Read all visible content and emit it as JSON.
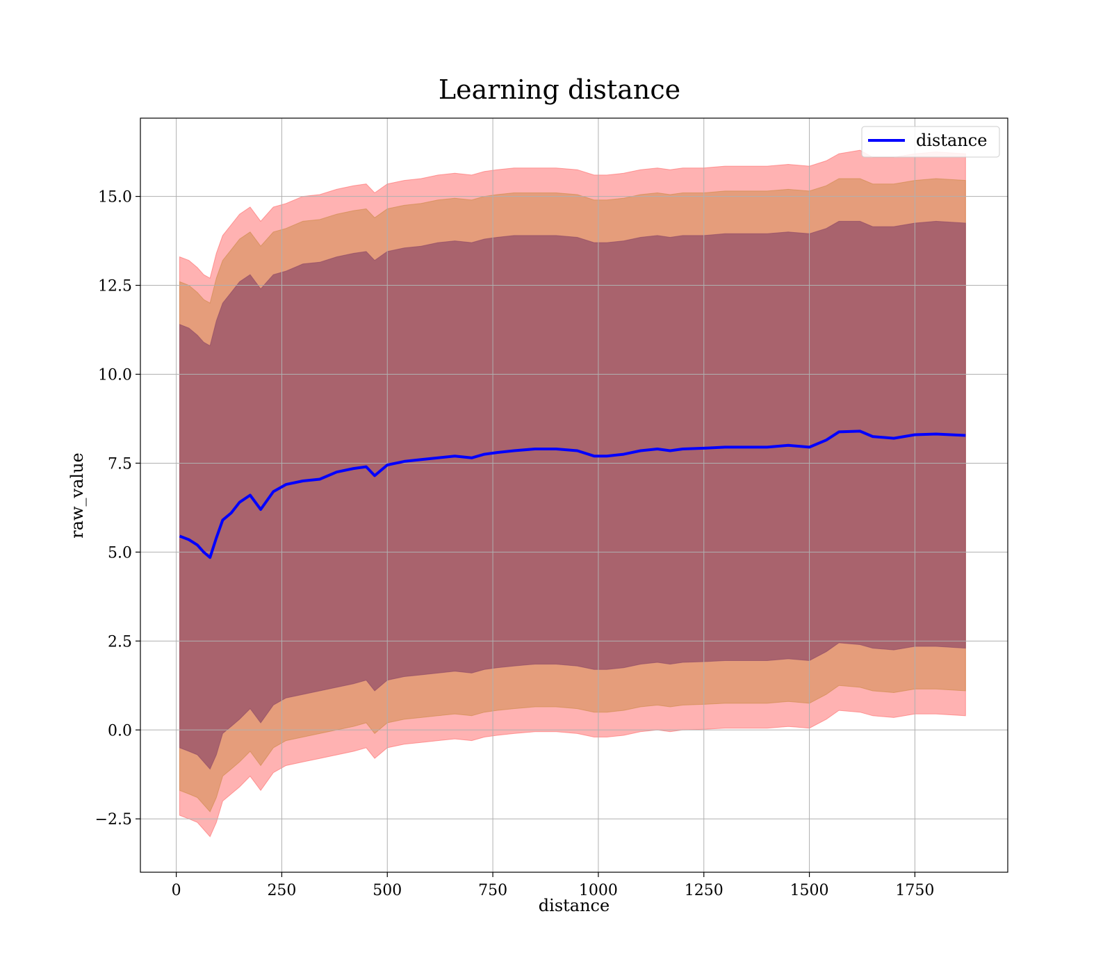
{
  "chart_data": {
    "type": "area",
    "title": "Learning distance",
    "xlabel": "distance",
    "ylabel": "raw_value",
    "xlim": [
      -85,
      1970
    ],
    "ylim": [
      -4,
      17.2
    ],
    "xticks": [
      0,
      250,
      500,
      750,
      1000,
      1250,
      1500,
      1750
    ],
    "yticks": [
      -2.5,
      0.0,
      2.5,
      5.0,
      7.5,
      10.0,
      12.5,
      15.0
    ],
    "xtick_labels": [
      "0",
      "250",
      "500",
      "750",
      "1000",
      "1250",
      "1500",
      "1750"
    ],
    "ytick_labels": [
      "−2.5",
      "0.0",
      "2.5",
      "5.0",
      "7.5",
      "10.0",
      "12.5",
      "15.0"
    ],
    "grid": true,
    "legend": {
      "position": "top-right",
      "entries": [
        {
          "name": "distance",
          "color": "#0000ff"
        }
      ]
    },
    "x": [
      8,
      30,
      50,
      65,
      80,
      95,
      110,
      130,
      150,
      175,
      200,
      230,
      260,
      300,
      340,
      380,
      420,
      450,
      470,
      500,
      540,
      580,
      620,
      660,
      700,
      730,
      760,
      800,
      850,
      900,
      950,
      990,
      1020,
      1060,
      1100,
      1140,
      1170,
      1200,
      1250,
      1300,
      1350,
      1400,
      1450,
      1500,
      1540,
      1570,
      1620,
      1650,
      1700,
      1750,
      1800,
      1870
    ],
    "series": [
      {
        "name": "distance",
        "values": [
          5.45,
          5.35,
          5.2,
          5.0,
          4.85,
          5.4,
          5.9,
          6.1,
          6.4,
          6.6,
          6.2,
          6.7,
          6.9,
          7.0,
          7.05,
          7.25,
          7.35,
          7.4,
          7.15,
          7.45,
          7.55,
          7.6,
          7.65,
          7.7,
          7.65,
          7.75,
          7.8,
          7.85,
          7.9,
          7.9,
          7.85,
          7.7,
          7.7,
          7.75,
          7.85,
          7.9,
          7.85,
          7.9,
          7.92,
          7.95,
          7.95,
          7.95,
          8.0,
          7.95,
          8.15,
          8.38,
          8.4,
          8.25,
          8.2,
          8.3,
          8.32,
          8.28
        ],
        "color": "#0000ff"
      }
    ],
    "bands": [
      {
        "upper": [
          13.3,
          13.2,
          13.0,
          12.8,
          12.7,
          13.4,
          13.9,
          14.2,
          14.5,
          14.7,
          14.3,
          14.7,
          14.8,
          15.0,
          15.05,
          15.2,
          15.3,
          15.35,
          15.1,
          15.35,
          15.45,
          15.5,
          15.6,
          15.65,
          15.6,
          15.7,
          15.75,
          15.8,
          15.8,
          15.8,
          15.75,
          15.6,
          15.6,
          15.65,
          15.75,
          15.8,
          15.75,
          15.8,
          15.8,
          15.85,
          15.85,
          15.85,
          15.9,
          15.85,
          16.0,
          16.2,
          16.3,
          16.1,
          16.1,
          16.2,
          16.25,
          16.2
        ],
        "lower": [
          -2.4,
          -2.5,
          -2.6,
          -2.8,
          -3.0,
          -2.6,
          -2.0,
          -1.8,
          -1.6,
          -1.3,
          -1.7,
          -1.2,
          -1.0,
          -0.9,
          -0.8,
          -0.7,
          -0.6,
          -0.5,
          -0.8,
          -0.5,
          -0.4,
          -0.35,
          -0.3,
          -0.25,
          -0.3,
          -0.2,
          -0.15,
          -0.1,
          -0.05,
          -0.05,
          -0.1,
          -0.2,
          -0.2,
          -0.15,
          -0.05,
          0.0,
          -0.05,
          0.0,
          0.02,
          0.05,
          0.05,
          0.05,
          0.1,
          0.05,
          0.3,
          0.55,
          0.5,
          0.4,
          0.35,
          0.45,
          0.45,
          0.4
        ],
        "color": "#ff6666",
        "opacity": 0.5
      },
      {
        "upper": [
          12.6,
          12.5,
          12.3,
          12.1,
          12.0,
          12.7,
          13.2,
          13.5,
          13.8,
          14.0,
          13.6,
          14.0,
          14.1,
          14.3,
          14.35,
          14.5,
          14.6,
          14.65,
          14.4,
          14.65,
          14.75,
          14.8,
          14.9,
          14.95,
          14.9,
          15.0,
          15.05,
          15.1,
          15.1,
          15.1,
          15.05,
          14.9,
          14.9,
          14.95,
          15.05,
          15.1,
          15.05,
          15.1,
          15.1,
          15.15,
          15.15,
          15.15,
          15.2,
          15.15,
          15.3,
          15.5,
          15.5,
          15.35,
          15.35,
          15.45,
          15.5,
          15.45
        ],
        "lower": [
          -1.7,
          -1.8,
          -1.9,
          -2.1,
          -2.3,
          -1.9,
          -1.3,
          -1.1,
          -0.9,
          -0.6,
          -1.0,
          -0.5,
          -0.3,
          -0.2,
          -0.1,
          0.0,
          0.1,
          0.2,
          -0.1,
          0.2,
          0.3,
          0.35,
          0.4,
          0.45,
          0.4,
          0.5,
          0.55,
          0.6,
          0.65,
          0.65,
          0.6,
          0.5,
          0.5,
          0.55,
          0.65,
          0.7,
          0.65,
          0.7,
          0.72,
          0.75,
          0.75,
          0.75,
          0.8,
          0.75,
          1.0,
          1.25,
          1.2,
          1.1,
          1.05,
          1.15,
          1.15,
          1.1
        ],
        "color": "#cc8844",
        "opacity": 0.5
      },
      {
        "upper": [
          11.4,
          11.3,
          11.1,
          10.9,
          10.8,
          11.5,
          12.0,
          12.3,
          12.6,
          12.8,
          12.4,
          12.8,
          12.9,
          13.1,
          13.15,
          13.3,
          13.4,
          13.45,
          13.2,
          13.45,
          13.55,
          13.6,
          13.7,
          13.75,
          13.7,
          13.8,
          13.85,
          13.9,
          13.9,
          13.9,
          13.85,
          13.7,
          13.7,
          13.75,
          13.85,
          13.9,
          13.85,
          13.9,
          13.9,
          13.95,
          13.95,
          13.95,
          14.0,
          13.95,
          14.1,
          14.3,
          14.3,
          14.15,
          14.15,
          14.25,
          14.3,
          14.25
        ],
        "lower": [
          -0.5,
          -0.6,
          -0.7,
          -0.9,
          -1.1,
          -0.7,
          -0.1,
          0.1,
          0.3,
          0.6,
          0.2,
          0.7,
          0.9,
          1.0,
          1.1,
          1.2,
          1.3,
          1.4,
          1.1,
          1.4,
          1.5,
          1.55,
          1.6,
          1.65,
          1.6,
          1.7,
          1.75,
          1.8,
          1.85,
          1.85,
          1.8,
          1.7,
          1.7,
          1.75,
          1.85,
          1.9,
          1.85,
          1.9,
          1.92,
          1.95,
          1.95,
          1.95,
          2.0,
          1.95,
          2.2,
          2.45,
          2.4,
          2.3,
          2.25,
          2.35,
          2.35,
          2.3
        ],
        "color": "#884466",
        "opacity": 0.65
      }
    ]
  }
}
